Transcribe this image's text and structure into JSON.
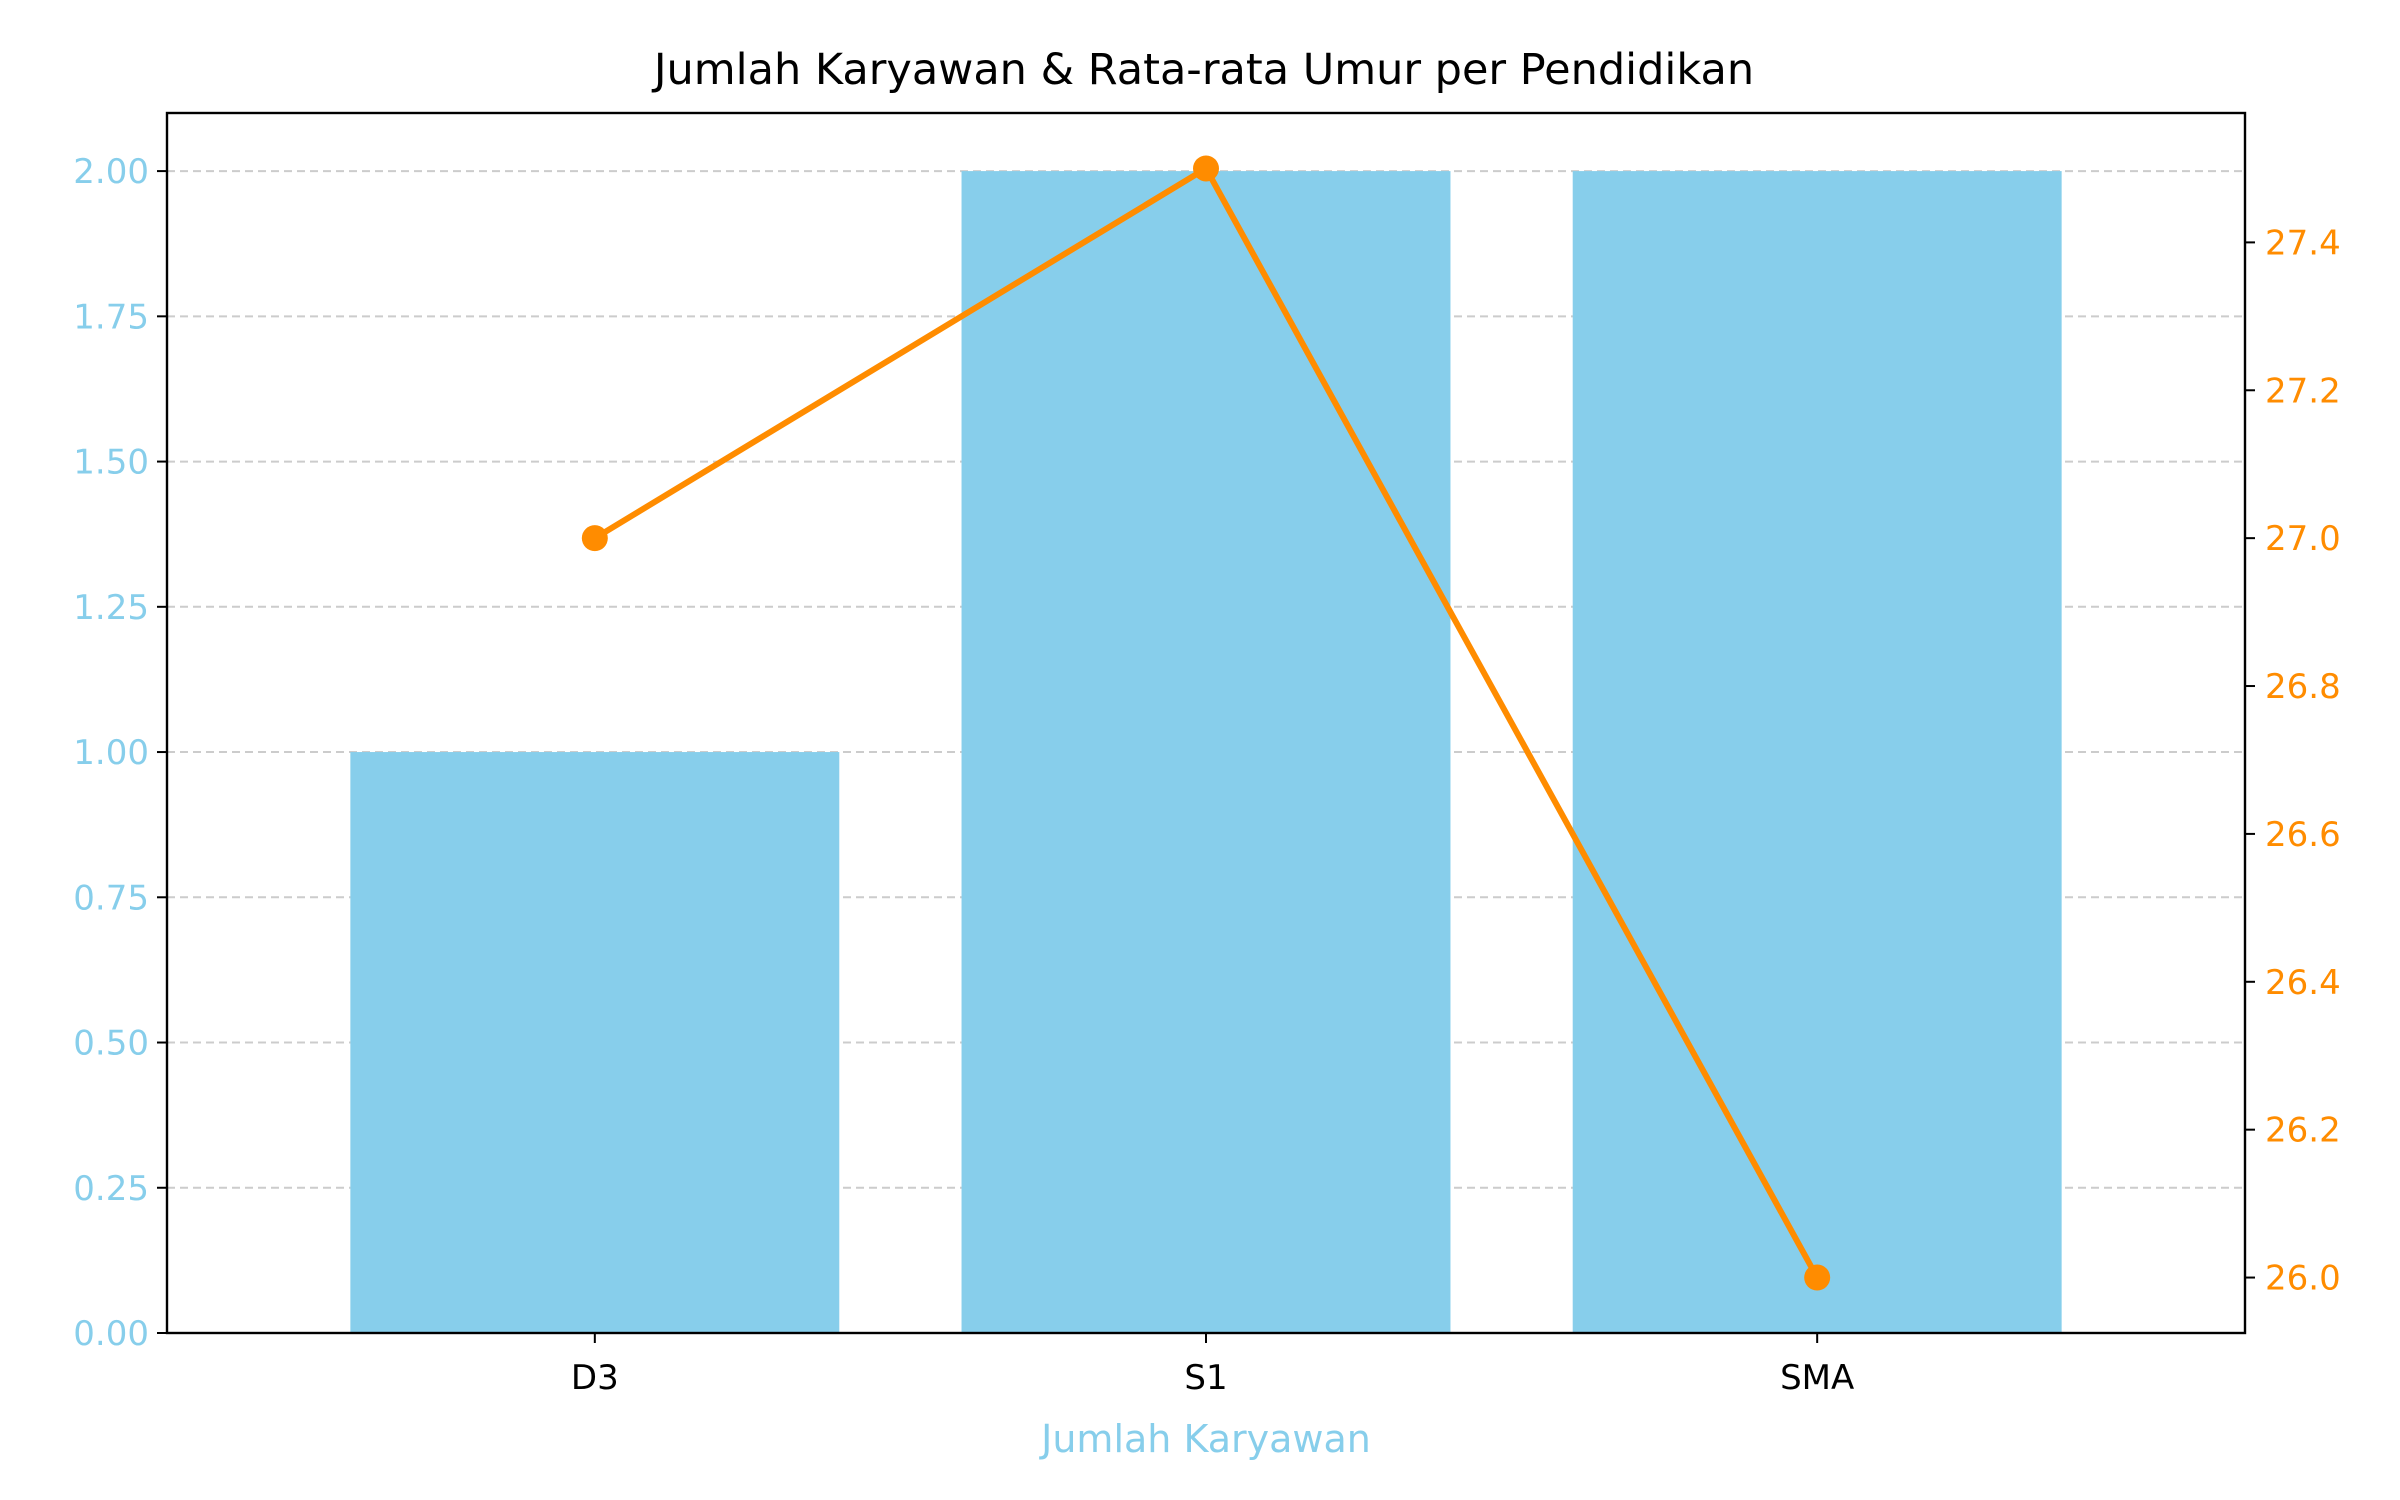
{
  "chart_data": {
    "type": "bar+line",
    "title": "Jumlah Karyawan & Rata-rata Umur per Pendidikan",
    "xlabel": "Jumlah Karyawan",
    "categories": [
      "D3",
      "S1",
      "SMA"
    ],
    "grid": "horizontal dashed",
    "series": [
      {
        "type": "bar",
        "axis": "left",
        "color": "#87CEEB",
        "values": [
          1,
          2,
          2
        ]
      },
      {
        "type": "line",
        "axis": "right",
        "color": "#FF8C00",
        "marker": "circle",
        "values": [
          27.0,
          27.5,
          26.0
        ]
      }
    ],
    "y_left": {
      "lim": [
        0,
        2.1
      ],
      "ticks": [
        "0.00",
        "0.25",
        "0.50",
        "0.75",
        "1.00",
        "1.25",
        "1.50",
        "1.75",
        "2.00"
      ],
      "tick_values": [
        0,
        0.25,
        0.5,
        0.75,
        1.0,
        1.25,
        1.5,
        1.75,
        2.0
      ],
      "color": "#87CEEB"
    },
    "y_right": {
      "lim": [
        25.925,
        27.575
      ],
      "ticks": [
        "26.0",
        "26.2",
        "26.4",
        "26.6",
        "26.8",
        "27.0",
        "27.2",
        "27.4"
      ],
      "tick_values": [
        26.0,
        26.2,
        26.4,
        26.6,
        26.8,
        27.0,
        27.2,
        27.4
      ],
      "color": "#FF8C00"
    }
  }
}
